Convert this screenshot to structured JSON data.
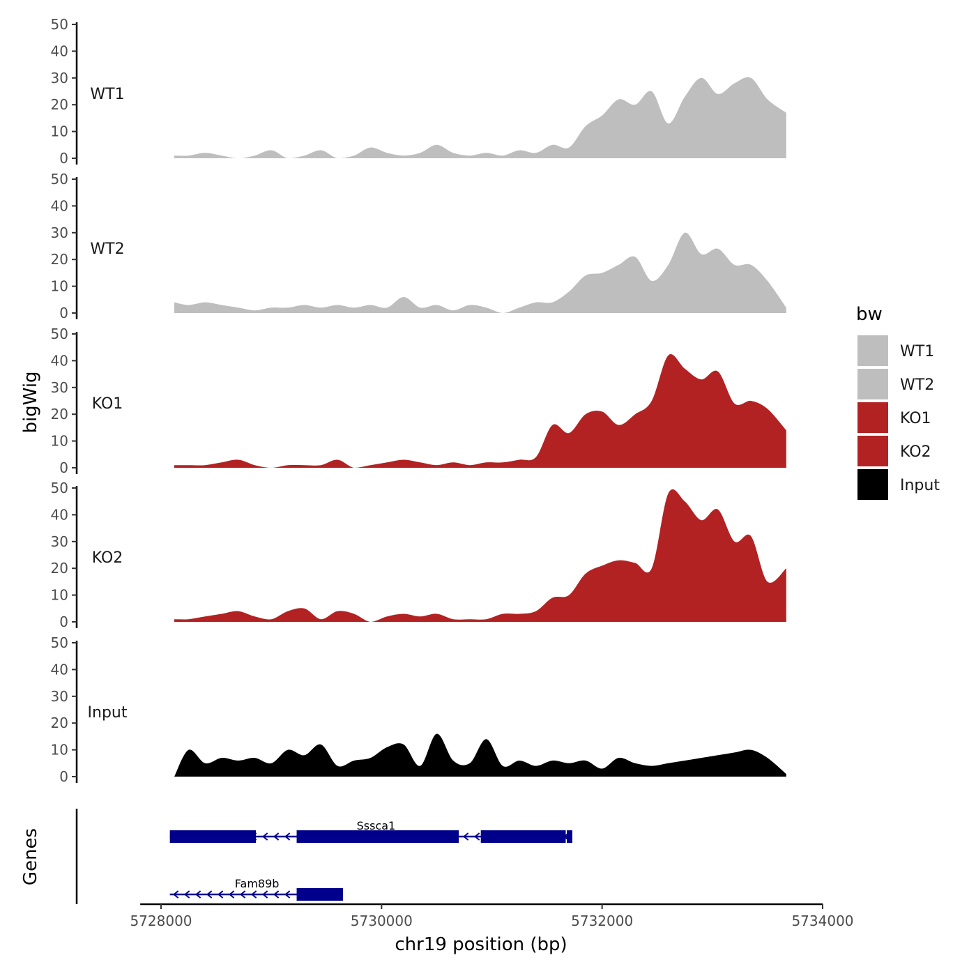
{
  "chart_data": {
    "type": "area",
    "ylabel": "bigWig",
    "xlabel": "chr19 position (bp)",
    "ylim": [
      0,
      50
    ],
    "xlim": [
      5727900,
      5734000
    ],
    "yticks": [
      0,
      10,
      20,
      30,
      40,
      50
    ],
    "xticks": [
      5728000,
      5730000,
      5732000,
      5734000
    ],
    "x": [
      5728120,
      5728250,
      5728400,
      5728550,
      5728700,
      5728850,
      5729000,
      5729150,
      5729300,
      5729450,
      5729600,
      5729750,
      5729900,
      5730050,
      5730200,
      5730350,
      5730500,
      5730650,
      5730800,
      5730950,
      5731100,
      5731250,
      5731400,
      5731550,
      5731700,
      5731850,
      5732000,
      5732150,
      5732300,
      5732450,
      5732600,
      5732750,
      5732900,
      5733050,
      5733200,
      5733350,
      5733500,
      5733670
    ],
    "series": [
      {
        "name": "WT1",
        "color": "#bebebe",
        "values": [
          1,
          1,
          2,
          1,
          0,
          1,
          3,
          0,
          1,
          3,
          0,
          1,
          4,
          2,
          1,
          2,
          5,
          2,
          1,
          2,
          1,
          3,
          2,
          5,
          4,
          12,
          16,
          22,
          20,
          25,
          13,
          23,
          30,
          24,
          28,
          30,
          22,
          17
        ]
      },
      {
        "name": "WT2",
        "color": "#bebebe",
        "values": [
          4,
          3,
          4,
          3,
          2,
          1,
          2,
          2,
          3,
          2,
          3,
          2,
          3,
          2,
          6,
          2,
          3,
          1,
          3,
          2,
          0,
          2,
          4,
          4,
          8,
          14,
          15,
          18,
          21,
          12,
          18,
          30,
          22,
          24,
          18,
          18,
          12,
          2
        ]
      },
      {
        "name": "KO1",
        "color": "#b22222",
        "values": [
          1,
          1,
          1,
          2,
          3,
          1,
          0,
          1,
          1,
          1,
          3,
          0,
          1,
          2,
          3,
          2,
          1,
          2,
          1,
          2,
          2,
          3,
          4,
          16,
          13,
          20,
          21,
          16,
          20,
          25,
          42,
          37,
          33,
          36,
          24,
          25,
          22,
          14
        ]
      },
      {
        "name": "KO2",
        "color": "#b22222",
        "values": [
          1,
          1,
          2,
          3,
          4,
          2,
          1,
          4,
          5,
          1,
          4,
          3,
          0,
          2,
          3,
          2,
          3,
          1,
          1,
          1,
          3,
          3,
          4,
          9,
          10,
          18,
          21,
          23,
          22,
          20,
          48,
          45,
          38,
          42,
          30,
          32,
          15,
          20
        ]
      },
      {
        "name": "Input",
        "color": "#000000",
        "values": [
          0,
          10,
          5,
          7,
          6,
          7,
          5,
          10,
          8,
          12,
          4,
          6,
          7,
          11,
          12,
          4,
          16,
          6,
          5,
          14,
          4,
          6,
          4,
          6,
          5,
          6,
          3,
          7,
          5,
          4,
          5,
          6,
          7,
          8,
          9,
          10,
          7,
          1
        ]
      }
    ],
    "legend": {
      "title": "bw",
      "position": "right",
      "entries": [
        "WT1",
        "WT2",
        "KO1",
        "KO2",
        "Input"
      ]
    },
    "genes_track": {
      "label": "Genes",
      "color": "#00008b",
      "genes": [
        {
          "name": "Sssca1",
          "strand": "-",
          "start": 5728080,
          "end": 5731730,
          "exons": [
            [
              5728080,
              5728860
            ],
            [
              5729230,
              5730700
            ],
            [
              5730900,
              5731670
            ],
            [
              5731680,
              5731730
            ]
          ]
        },
        {
          "name": "Fam89b",
          "strand": "-",
          "start": 5728080,
          "end": 5729650,
          "exons": [
            [
              5729230,
              5729650
            ]
          ]
        }
      ]
    },
    "grid": false
  }
}
